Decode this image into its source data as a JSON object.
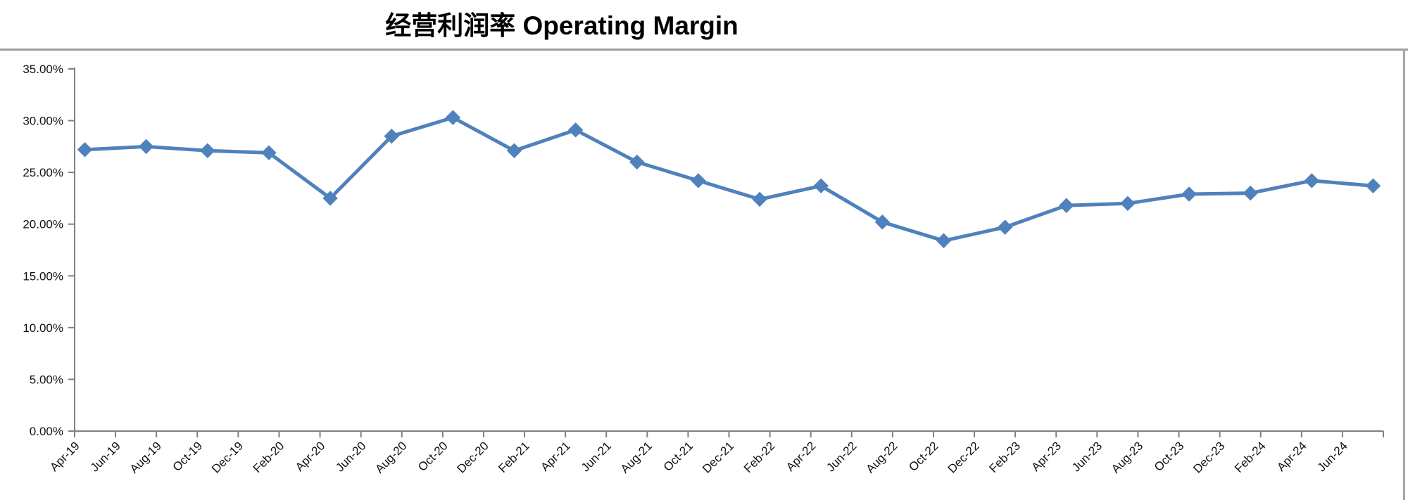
{
  "title": "经营利润率 Operating Margin",
  "chart_data": {
    "type": "line",
    "title": "经营利润率 Operating Margin",
    "x_axis": {
      "tick_labels": [
        "Apr-19",
        "Jun-19",
        "Aug-19",
        "Oct-19",
        "Dec-19",
        "Feb-20",
        "Apr-20",
        "Jun-20",
        "Aug-20",
        "Oct-20",
        "Dec-20",
        "Feb-21",
        "Apr-21",
        "Jun-21",
        "Aug-21",
        "Oct-21",
        "Dec-21",
        "Feb-22",
        "Apr-22",
        "Jun-22",
        "Aug-22",
        "Oct-22",
        "Dec-22",
        "Feb-23",
        "Apr-23",
        "Jun-23",
        "Aug-23",
        "Oct-23",
        "Dec-23",
        "Feb-24",
        "Apr-24",
        "Jun-24"
      ],
      "tick_interval_months": 2
    },
    "y_axis": {
      "tick_labels": [
        "0.00%",
        "5.00%",
        "10.00%",
        "15.00%",
        "20.00%",
        "25.00%",
        "30.00%",
        "35.00%"
      ],
      "min": 0,
      "max": 35,
      "step": 5,
      "unit": "%"
    },
    "grid": false,
    "legend": "none",
    "marker": "diamond",
    "series": [
      {
        "name": "Operating Margin 经营利润率",
        "interval_months": 3,
        "points": [
          {
            "x": "Apr-19",
            "y": 27.2
          },
          {
            "x": "Jul-19",
            "y": 27.5
          },
          {
            "x": "Oct-19",
            "y": 27.1
          },
          {
            "x": "Jan-20",
            "y": 26.9
          },
          {
            "x": "Apr-20",
            "y": 22.5
          },
          {
            "x": "Jul-20",
            "y": 28.5
          },
          {
            "x": "Oct-20",
            "y": 30.3
          },
          {
            "x": "Jan-21",
            "y": 27.1
          },
          {
            "x": "Apr-21",
            "y": 29.1
          },
          {
            "x": "Jul-21",
            "y": 26.0
          },
          {
            "x": "Oct-21",
            "y": 24.2
          },
          {
            "x": "Jan-22",
            "y": 22.4
          },
          {
            "x": "Apr-22",
            "y": 23.7
          },
          {
            "x": "Jul-22",
            "y": 20.2
          },
          {
            "x": "Oct-22",
            "y": 18.4
          },
          {
            "x": "Jan-23",
            "y": 19.7
          },
          {
            "x": "Apr-23",
            "y": 21.8
          },
          {
            "x": "Jul-23",
            "y": 22.0
          },
          {
            "x": "Oct-23",
            "y": 22.9
          },
          {
            "x": "Jan-24",
            "y": 23.0
          },
          {
            "x": "Apr-24",
            "y": 24.2
          },
          {
            "x": "Jul-24",
            "y": 23.7
          }
        ]
      }
    ],
    "colors": {
      "line": "#4F81BD",
      "marker": "#4F81BD",
      "axis": "#808080",
      "border": "#A6A6A6",
      "text": "#111111"
    }
  }
}
